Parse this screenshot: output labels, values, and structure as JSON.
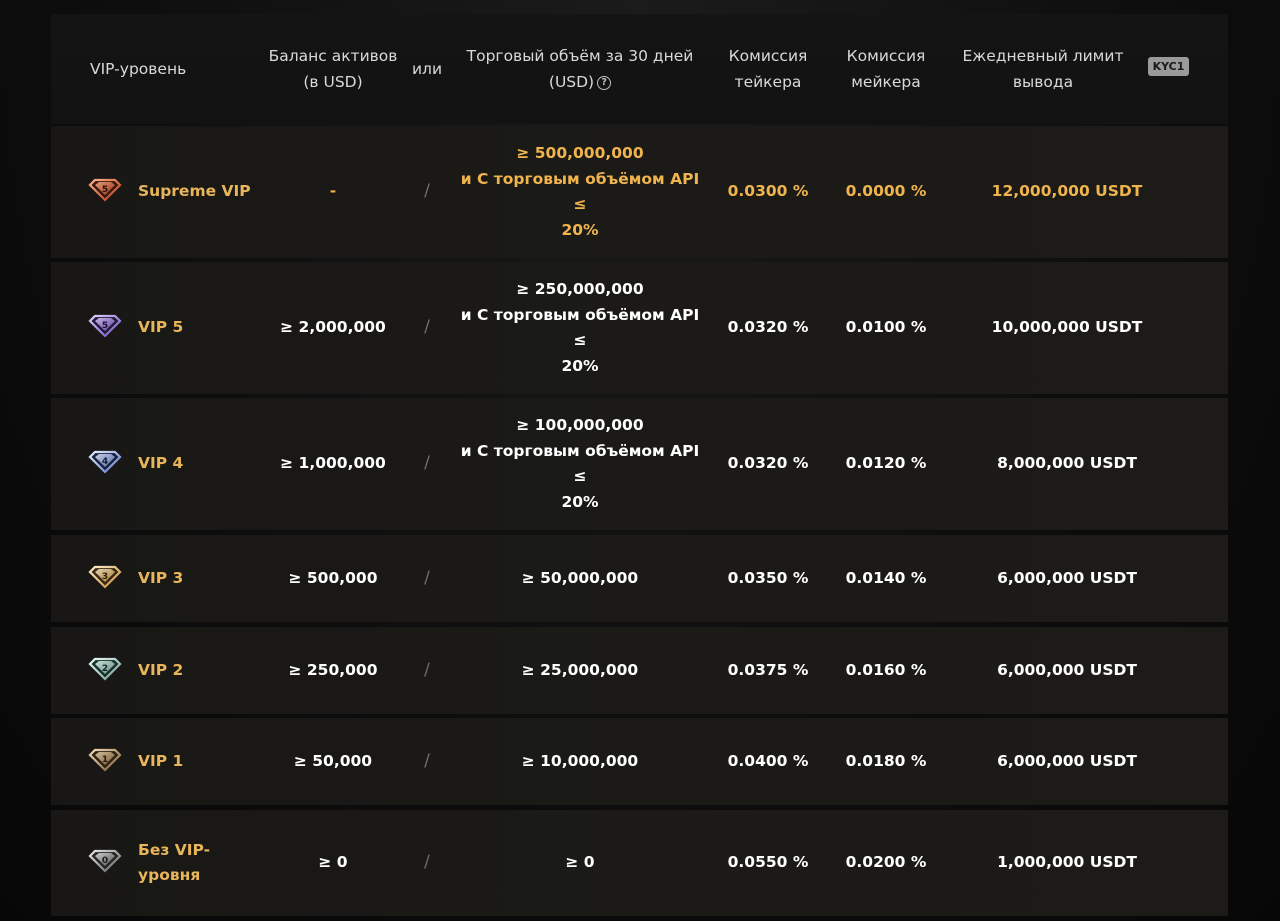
{
  "header": {
    "col_level": "VIP-уровень",
    "col_balance_line1": "Баланс активов",
    "col_balance_line2": "(в USD)",
    "col_or": "или",
    "col_volume_line1": "Торговый объём за 30 дней",
    "col_volume_line2": "(USD)",
    "col_volume_help_icon": "?",
    "col_taker_line1": "Комиссия",
    "col_taker_line2": "тейкера",
    "col_maker_line1": "Комиссия",
    "col_maker_line2": "мейкера",
    "col_limit_line1": "Ежедневный лимит",
    "col_limit_line2": "вывода",
    "kyc_badge": "KYC1"
  },
  "rows": [
    {
      "badge_digit": "5",
      "icon": "supreme-gem-icon",
      "gem_color": "#e0663a",
      "name": "Supreme VIP",
      "balance": "-",
      "slash": "/",
      "volume_line1": "≥ 500,000,000",
      "volume_line2": "и С торговым объёмом API ≤",
      "volume_line3": "20%",
      "taker": "0.0300 %",
      "maker": "0.0000 %",
      "limit": "12,000,000 USDT"
    },
    {
      "badge_digit": "5",
      "icon": "vip5-gem-icon",
      "gem_color": "#a98ce8",
      "name": "VIP 5",
      "balance": "≥ 2,000,000",
      "slash": "/",
      "volume_line1": "≥ 250,000,000",
      "volume_line2": "и С торговым объёмом API ≤",
      "volume_line3": "20%",
      "taker": "0.0320 %",
      "maker": "0.0100 %",
      "limit": "10,000,000 USDT"
    },
    {
      "badge_digit": "4",
      "icon": "vip4-gem-icon",
      "gem_color": "#9fb6ee",
      "name": "VIP 4",
      "balance": "≥ 1,000,000",
      "slash": "/",
      "volume_line1": "≥ 100,000,000",
      "volume_line2": "и С торговым объёмом API ≤",
      "volume_line3": "20%",
      "taker": "0.0320 %",
      "maker": "0.0120 %",
      "limit": "8,000,000 USDT"
    },
    {
      "badge_digit": "3",
      "icon": "vip3-gem-icon",
      "gem_color": "#f0c27a",
      "name": "VIP 3",
      "balance": "≥ 500,000",
      "slash": "/",
      "volume_line1": "≥ 50,000,000",
      "taker": "0.0350 %",
      "maker": "0.0140 %",
      "limit": "6,000,000 USDT"
    },
    {
      "badge_digit": "2",
      "icon": "vip2-gem-icon",
      "gem_color": "#b9d7d0",
      "name": "VIP 2",
      "balance": "≥ 250,000",
      "slash": "/",
      "volume_line1": "≥ 25,000,000",
      "taker": "0.0375 %",
      "maker": "0.0160 %",
      "limit": "6,000,000 USDT"
    },
    {
      "badge_digit": "1",
      "icon": "vip1-gem-icon",
      "gem_color": "#c7a77b",
      "name": "VIP 1",
      "balance": "≥ 50,000",
      "slash": "/",
      "volume_line1": "≥ 10,000,000",
      "taker": "0.0400 %",
      "maker": "0.0180 %",
      "limit": "6,000,000 USDT"
    },
    {
      "badge_digit": "0",
      "icon": "vip0-gem-icon",
      "gem_color": "#9a9a9a",
      "name_line1": "Без VIP-",
      "name_line2": "уровня",
      "balance": "≥ 0",
      "slash": "/",
      "volume_line1": "≥ 0",
      "taker": "0.0550 %",
      "maker": "0.0200 %",
      "limit": "1,000,000 USDT"
    }
  ],
  "colors": {
    "accent_gold": "#f0b44e",
    "row_name_gold": "#e8b55a",
    "text_white": "#ffffff",
    "header_text": "#d9d9d9"
  }
}
